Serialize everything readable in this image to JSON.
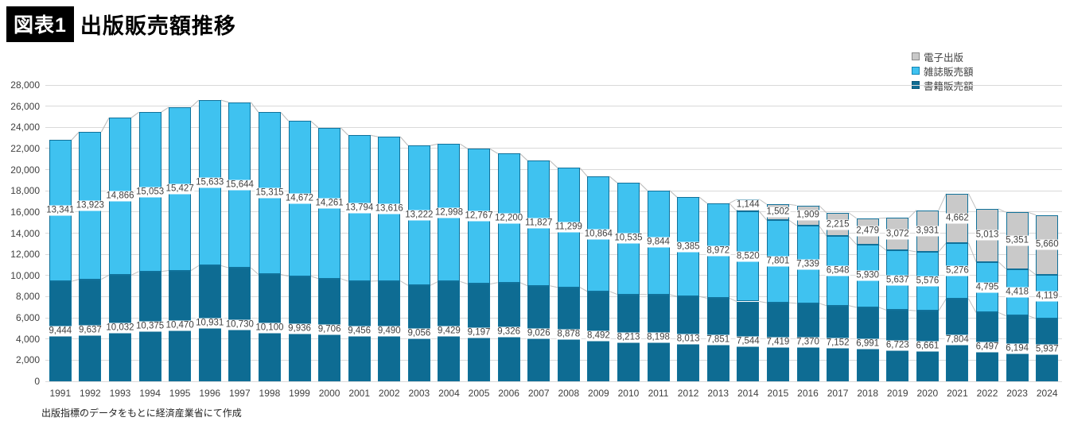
{
  "header": {
    "badge": "図表1",
    "title": "出版販売額推移"
  },
  "source_note": "出版指標のデータをもとに経済産業省にて作成",
  "legend": [
    {
      "label": "電子出版",
      "fill": "#c9c9c9",
      "border": "#8a8a8a"
    },
    {
      "label": "雑誌販売額",
      "fill": "#3fc2f0",
      "border": "#1285b5"
    },
    {
      "label": "書籍販売額",
      "fill": "#0e6c93",
      "border": "#0b577a"
    }
  ],
  "chart_data": {
    "type": "bar",
    "stacked": true,
    "title": "出版販売額推移",
    "xlabel": "",
    "ylabel": "",
    "ylim": [
      0,
      28000
    ],
    "ytick_step": 2000,
    "grid": true,
    "legend_position": "top-right",
    "categories": [
      "1991",
      "1992",
      "1993",
      "1994",
      "1995",
      "1996",
      "1997",
      "1998",
      "1999",
      "2000",
      "2001",
      "2002",
      "2003",
      "2004",
      "2005",
      "2006",
      "2007",
      "2008",
      "2009",
      "2010",
      "2011",
      "2012",
      "2013",
      "2014",
      "2015",
      "2016",
      "2017",
      "2018",
      "2019",
      "2020",
      "2021",
      "2022",
      "2023",
      "2024"
    ],
    "series": [
      {
        "name": "書籍販売額",
        "fill": "#0e6c93",
        "border": "#10719a",
        "values": [
          9444,
          9637,
          10032,
          10375,
          10470,
          10931,
          10730,
          10100,
          9936,
          9706,
          9456,
          9490,
          9056,
          9429,
          9197,
          9326,
          9026,
          8878,
          8492,
          8213,
          8198,
          8013,
          7851,
          7544,
          7419,
          7370,
          7152,
          6991,
          6723,
          6661,
          7804,
          6497,
          6194,
          5937
        ]
      },
      {
        "name": "雑誌販売額",
        "fill": "#3fc2f0",
        "border": "#10719a",
        "values": [
          13341,
          13923,
          14866,
          15053,
          15427,
          15633,
          15644,
          15315,
          14672,
          14261,
          13794,
          13616,
          13222,
          12998,
          12767,
          12200,
          11827,
          11299,
          10864,
          10535,
          9844,
          9385,
          8972,
          8520,
          7801,
          7339,
          6548,
          5930,
          5637,
          5576,
          5276,
          4795,
          4418,
          4119
        ]
      },
      {
        "name": "電子出版",
        "fill": "#c9c9c9",
        "border": "#10719a",
        "values": [
          0,
          0,
          0,
          0,
          0,
          0,
          0,
          0,
          0,
          0,
          0,
          0,
          0,
          0,
          0,
          0,
          0,
          0,
          0,
          0,
          0,
          0,
          0,
          1144,
          1502,
          1909,
          2215,
          2479,
          3072,
          3931,
          4662,
          5013,
          5351,
          5660
        ]
      }
    ],
    "series_line_color": "#c0c0c0"
  }
}
